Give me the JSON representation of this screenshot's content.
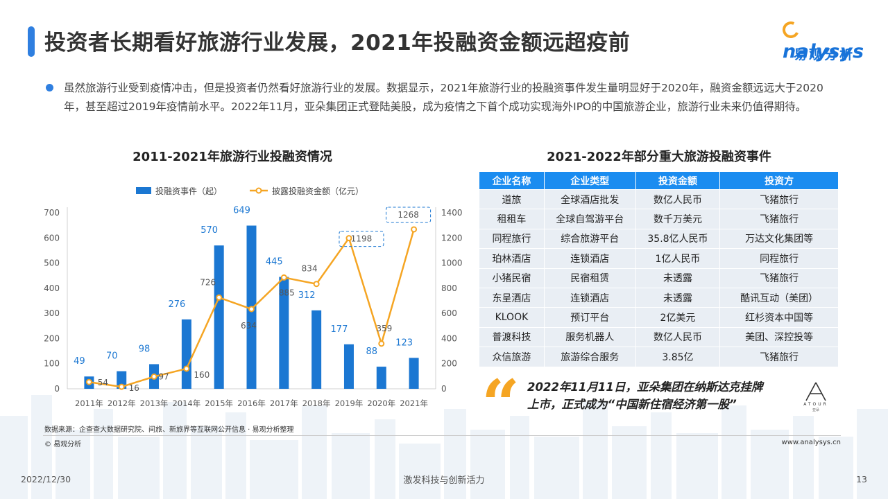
{
  "header": {
    "title": "投资者长期看好旅游行业发展，2021年投融资金额远超疫前",
    "logo_text": "nalysys",
    "logo_cn": "易观分析"
  },
  "summary": "虽然旅游行业受到疫情冲击，但是投资者仍然看好旅游行业的发展。数据显示，2021年旅游行业的投融资事件发生量明显好于2020年，融资金额远远大于2020年，甚至超过2019年疫情前水平。2022年11月，亚朵集团正式登陆美股，成为疫情之下首个成功实现海外IPO的中国旅游企业，旅游行业未来仍值得期待。",
  "chart_section_title": "2011-2021年旅游行业投融资情况",
  "chart_data": {
    "type": "bar",
    "categories": [
      "2011年",
      "2012年",
      "2013年",
      "2014年",
      "2015年",
      "2016年",
      "2017年",
      "2018年",
      "2019年",
      "2020年",
      "2021年"
    ],
    "series": [
      {
        "name": "投融资事件（起）",
        "type": "bar",
        "axis": "left",
        "values": [
          49,
          70,
          98,
          276,
          570,
          649,
          445,
          312,
          177,
          88,
          123
        ]
      },
      {
        "name": "披露投融资金额（亿元）",
        "type": "line",
        "axis": "right",
        "values": [
          54,
          16,
          97,
          160,
          726,
          634,
          885,
          834,
          1198,
          359,
          1268
        ]
      }
    ],
    "left_axis": {
      "ylim": [
        0,
        700
      ],
      "ticks": [
        0,
        100,
        200,
        300,
        400,
        500,
        600,
        700
      ]
    },
    "right_axis": {
      "ylim": [
        0,
        1400
      ],
      "ticks": [
        0,
        200,
        400,
        600,
        800,
        1000,
        1200,
        1400
      ]
    },
    "highlighted_points": [
      "2019年",
      "2021年"
    ],
    "legend_position": "top",
    "colors": {
      "bar": "#1b77d2",
      "line": "#f5a523",
      "bar_label": "#1b77d2",
      "line_label": "#555555"
    }
  },
  "table": {
    "title": "2021-2022年部分重大旅游投融资事件",
    "columns": [
      "企业名称",
      "企业类型",
      "投资金额",
      "投资方"
    ],
    "rows": [
      [
        "道旅",
        "全球酒店批发",
        "数亿人民币",
        "飞猪旅行"
      ],
      [
        "租租车",
        "全球自驾游平台",
        "数千万美元",
        "飞猪旅行"
      ],
      [
        "同程旅行",
        "综合旅游平台",
        "35.8亿人民币",
        "万达文化集团等"
      ],
      [
        "珀林酒店",
        "连锁酒店",
        "1亿人民币",
        "同程旅行"
      ],
      [
        "小猪民宿",
        "民宿租赁",
        "未透露",
        "飞猪旅行"
      ],
      [
        "东呈酒店",
        "连锁酒店",
        "未透露",
        "酷讯互动（美团）"
      ],
      [
        "KLOOK",
        "预订平台",
        "2亿美元",
        "红杉资本中国等"
      ],
      [
        "普渡科技",
        "服务机器人",
        "数亿人民币",
        "美团、深控投等"
      ],
      [
        "众信旅游",
        "旅游综合服务",
        "3.85亿",
        "飞猪旅行"
      ]
    ]
  },
  "quote": {
    "line1": "2022年11月11日，亚朵集团在纳斯达克挂牌",
    "line2": "上市，正式成为“中国新住宿经济第一股”",
    "brand_name": "ATOUR",
    "brand_cn": "亚朵"
  },
  "footer": {
    "source": "数据来源：企查查大数据研究院、间旅、新旅界等互联网公开信息 · 易观分析整理",
    "copyright": "© 易观分析",
    "website": "www.analysys.cn",
    "date": "2022/12/30",
    "slogan": "激发科技与创新活力",
    "page": "13"
  },
  "colors": {
    "accent": "#2f7fe0",
    "table_header": "#1a8cf0",
    "table_row": "#e9eef4",
    "quote": "#f5a523"
  }
}
